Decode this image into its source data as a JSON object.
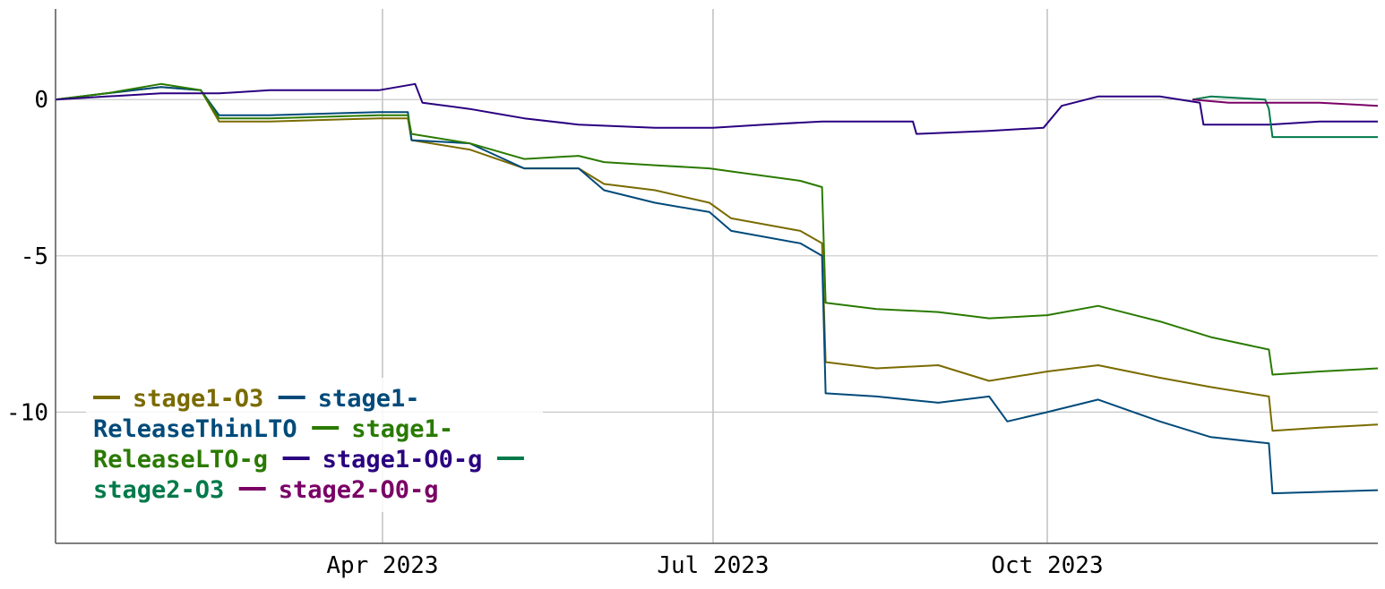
{
  "chart_data": {
    "type": "line",
    "title": "",
    "xlabel": "",
    "ylabel": "",
    "xlim": [
      "2023-01-01",
      "2023-12-31"
    ],
    "ylim": [
      -14.2,
      2.9
    ],
    "grid": true,
    "legend_position": "bottom-left",
    "x_ticks": [
      {
        "date": "2023-04-01",
        "label": "Apr 2023"
      },
      {
        "date": "2023-07-01",
        "label": "Jul 2023"
      },
      {
        "date": "2023-10-01",
        "label": "Oct 2023"
      }
    ],
    "y_ticks": [
      {
        "value": 0,
        "label": "0"
      },
      {
        "value": -5,
        "label": "-5"
      },
      {
        "value": -10,
        "label": "-10"
      }
    ],
    "series": [
      {
        "name": "stage1-O3",
        "color": "#7a6b00",
        "points": [
          [
            "2023-01-01",
            0
          ],
          [
            "2023-01-15",
            0.2
          ],
          [
            "2023-01-30",
            0.4
          ],
          [
            "2023-02-10",
            0.3
          ],
          [
            "2023-02-15",
            -0.7
          ],
          [
            "2023-03-01",
            -0.7
          ],
          [
            "2023-03-31",
            -0.6
          ],
          [
            "2023-04-08",
            -0.6
          ],
          [
            "2023-04-09",
            -1.3
          ],
          [
            "2023-04-25",
            -1.6
          ],
          [
            "2023-05-10",
            -2.2
          ],
          [
            "2023-05-25",
            -2.2
          ],
          [
            "2023-06-01",
            -2.7
          ],
          [
            "2023-06-15",
            -2.9
          ],
          [
            "2023-06-30",
            -3.3
          ],
          [
            "2023-07-06",
            -3.8
          ],
          [
            "2023-07-25",
            -4.2
          ],
          [
            "2023-07-31",
            -4.6
          ],
          [
            "2023-08-01",
            -8.4
          ],
          [
            "2023-08-15",
            -8.6
          ],
          [
            "2023-09-01",
            -8.5
          ],
          [
            "2023-09-15",
            -9.0
          ],
          [
            "2023-10-01",
            -8.7
          ],
          [
            "2023-10-15",
            -8.5
          ],
          [
            "2023-11-01",
            -8.9
          ],
          [
            "2023-11-15",
            -9.2
          ],
          [
            "2023-12-01",
            -9.5
          ],
          [
            "2023-12-02",
            -10.6
          ],
          [
            "2023-12-15",
            -10.5
          ],
          [
            "2023-12-31",
            -10.4
          ]
        ]
      },
      {
        "name": "stage1-ReleaseThinLTO",
        "color": "#004a7a",
        "points": [
          [
            "2023-01-01",
            0
          ],
          [
            "2023-01-15",
            0.2
          ],
          [
            "2023-01-30",
            0.4
          ],
          [
            "2023-02-10",
            0.3
          ],
          [
            "2023-02-15",
            -0.5
          ],
          [
            "2023-03-01",
            -0.5
          ],
          [
            "2023-03-31",
            -0.4
          ],
          [
            "2023-04-08",
            -0.4
          ],
          [
            "2023-04-09",
            -1.3
          ],
          [
            "2023-04-25",
            -1.4
          ],
          [
            "2023-05-10",
            -2.2
          ],
          [
            "2023-05-25",
            -2.2
          ],
          [
            "2023-06-01",
            -2.9
          ],
          [
            "2023-06-15",
            -3.3
          ],
          [
            "2023-06-30",
            -3.6
          ],
          [
            "2023-07-06",
            -4.2
          ],
          [
            "2023-07-25",
            -4.6
          ],
          [
            "2023-07-31",
            -5.0
          ],
          [
            "2023-08-01",
            -9.4
          ],
          [
            "2023-08-15",
            -9.5
          ],
          [
            "2023-09-01",
            -9.7
          ],
          [
            "2023-09-15",
            -9.5
          ],
          [
            "2023-09-20",
            -10.3
          ],
          [
            "2023-10-01",
            -10.0
          ],
          [
            "2023-10-15",
            -9.6
          ],
          [
            "2023-11-01",
            -10.3
          ],
          [
            "2023-11-15",
            -10.8
          ],
          [
            "2023-12-01",
            -11.0
          ],
          [
            "2023-12-02",
            -12.6
          ],
          [
            "2023-12-31",
            -12.5
          ]
        ]
      },
      {
        "name": "stage1-ReleaseLTO-g",
        "color": "#2a7a00",
        "points": [
          [
            "2023-01-01",
            0
          ],
          [
            "2023-01-15",
            0.2
          ],
          [
            "2023-01-30",
            0.5
          ],
          [
            "2023-02-10",
            0.3
          ],
          [
            "2023-02-15",
            -0.6
          ],
          [
            "2023-03-01",
            -0.6
          ],
          [
            "2023-03-31",
            -0.5
          ],
          [
            "2023-04-08",
            -0.5
          ],
          [
            "2023-04-09",
            -1.1
          ],
          [
            "2023-04-25",
            -1.4
          ],
          [
            "2023-05-10",
            -1.9
          ],
          [
            "2023-05-25",
            -1.8
          ],
          [
            "2023-06-01",
            -2.0
          ],
          [
            "2023-06-15",
            -2.1
          ],
          [
            "2023-06-30",
            -2.2
          ],
          [
            "2023-07-06",
            -2.3
          ],
          [
            "2023-07-25",
            -2.6
          ],
          [
            "2023-07-31",
            -2.8
          ],
          [
            "2023-08-01",
            -6.5
          ],
          [
            "2023-08-15",
            -6.7
          ],
          [
            "2023-09-01",
            -6.8
          ],
          [
            "2023-09-15",
            -7.0
          ],
          [
            "2023-10-01",
            -6.9
          ],
          [
            "2023-10-15",
            -6.6
          ],
          [
            "2023-11-01",
            -7.1
          ],
          [
            "2023-11-15",
            -7.6
          ],
          [
            "2023-12-01",
            -8.0
          ],
          [
            "2023-12-02",
            -8.8
          ],
          [
            "2023-12-15",
            -8.7
          ],
          [
            "2023-12-31",
            -8.6
          ]
        ]
      },
      {
        "name": "stage1-O0-g",
        "color": "#2a0080",
        "points": [
          [
            "2023-01-01",
            0
          ],
          [
            "2023-01-15",
            0.1
          ],
          [
            "2023-01-30",
            0.2
          ],
          [
            "2023-02-15",
            0.2
          ],
          [
            "2023-03-01",
            0.3
          ],
          [
            "2023-03-31",
            0.3
          ],
          [
            "2023-04-10",
            0.5
          ],
          [
            "2023-04-12",
            -0.1
          ],
          [
            "2023-04-25",
            -0.3
          ],
          [
            "2023-05-10",
            -0.6
          ],
          [
            "2023-05-25",
            -0.8
          ],
          [
            "2023-06-15",
            -0.9
          ],
          [
            "2023-07-01",
            -0.9
          ],
          [
            "2023-07-15",
            -0.8
          ],
          [
            "2023-07-31",
            -0.7
          ],
          [
            "2023-08-15",
            -0.7
          ],
          [
            "2023-08-25",
            -0.7
          ],
          [
            "2023-08-26",
            -1.1
          ],
          [
            "2023-09-15",
            -1.0
          ],
          [
            "2023-09-30",
            -0.9
          ],
          [
            "2023-10-05",
            -0.2
          ],
          [
            "2023-10-15",
            0.1
          ],
          [
            "2023-11-01",
            0.1
          ],
          [
            "2023-11-12",
            -0.1
          ],
          [
            "2023-11-13",
            -0.8
          ],
          [
            "2023-12-01",
            -0.8
          ],
          [
            "2023-12-15",
            -0.7
          ],
          [
            "2023-12-31",
            -0.7
          ]
        ]
      },
      {
        "name": "stage2-O3",
        "color": "#007a4a",
        "points": [
          [
            "2023-11-10",
            0.0
          ],
          [
            "2023-11-15",
            0.1
          ],
          [
            "2023-11-30",
            0.0
          ],
          [
            "2023-12-01",
            -0.3
          ],
          [
            "2023-12-02",
            -1.2
          ],
          [
            "2023-12-15",
            -1.2
          ],
          [
            "2023-12-31",
            -1.2
          ]
        ]
      },
      {
        "name": "stage2-O0-g",
        "color": "#7a0066",
        "points": [
          [
            "2023-11-10",
            0.0
          ],
          [
            "2023-11-20",
            -0.1
          ],
          [
            "2023-12-01",
            -0.1
          ],
          [
            "2023-12-15",
            -0.1
          ],
          [
            "2023-12-31",
            -0.2
          ]
        ]
      }
    ]
  }
}
